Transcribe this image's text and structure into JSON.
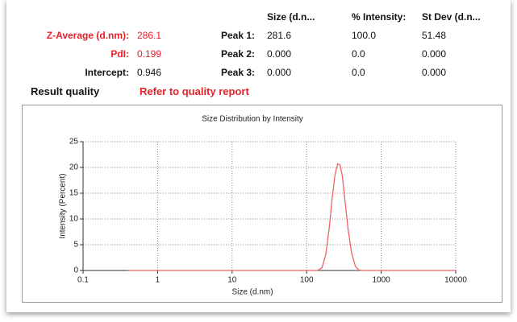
{
  "results": {
    "header": [
      "Size (d.n...",
      "% Intensity:",
      "St Dev (d.n..."
    ],
    "rows": [
      {
        "label": "Z-Average (d.nm):",
        "value": "286.1",
        "peak": "Peak 1:",
        "size": "281.6",
        "intensity": "100.0",
        "stdev": "51.48"
      },
      {
        "label": "PdI:",
        "value": "0.199",
        "peak": "Peak 2:",
        "size": "0.000",
        "intensity": "0.0",
        "stdev": "0.000"
      },
      {
        "label": "Intercept:",
        "value": "0.946",
        "peak": "Peak 3:",
        "size": "0.000",
        "intensity": "0.0",
        "stdev": "0.000"
      }
    ],
    "quality_label": "Result quality",
    "quality_value": "Refer to quality report"
  },
  "chart_data": {
    "type": "line",
    "title": "Size Distribution by Intensity",
    "x_label": "Size (d.nm)",
    "y_label": "Intensity (Percent)",
    "x_log": true,
    "grid": true,
    "xlim": [
      0.1,
      10000
    ],
    "xticks": [
      0.1,
      1,
      10,
      100,
      1000,
      10000
    ],
    "ylim": [
      0,
      25
    ],
    "yticks": [
      0,
      5,
      10,
      15,
      20,
      25
    ],
    "series": [
      {
        "color": "#f06262",
        "x": [
          0.4,
          1,
          10,
          100,
          140,
          160,
          180,
          200,
          220,
          240,
          260,
          280,
          300,
          330,
          360,
          400,
          450,
          500,
          550,
          1000,
          10000
        ],
        "values": [
          0,
          0,
          0,
          0,
          0,
          0.5,
          3,
          8,
          14,
          18.5,
          20.7,
          20.5,
          18.5,
          13,
          8,
          3.5,
          0.8,
          0.1,
          0,
          0,
          0
        ]
      }
    ]
  }
}
